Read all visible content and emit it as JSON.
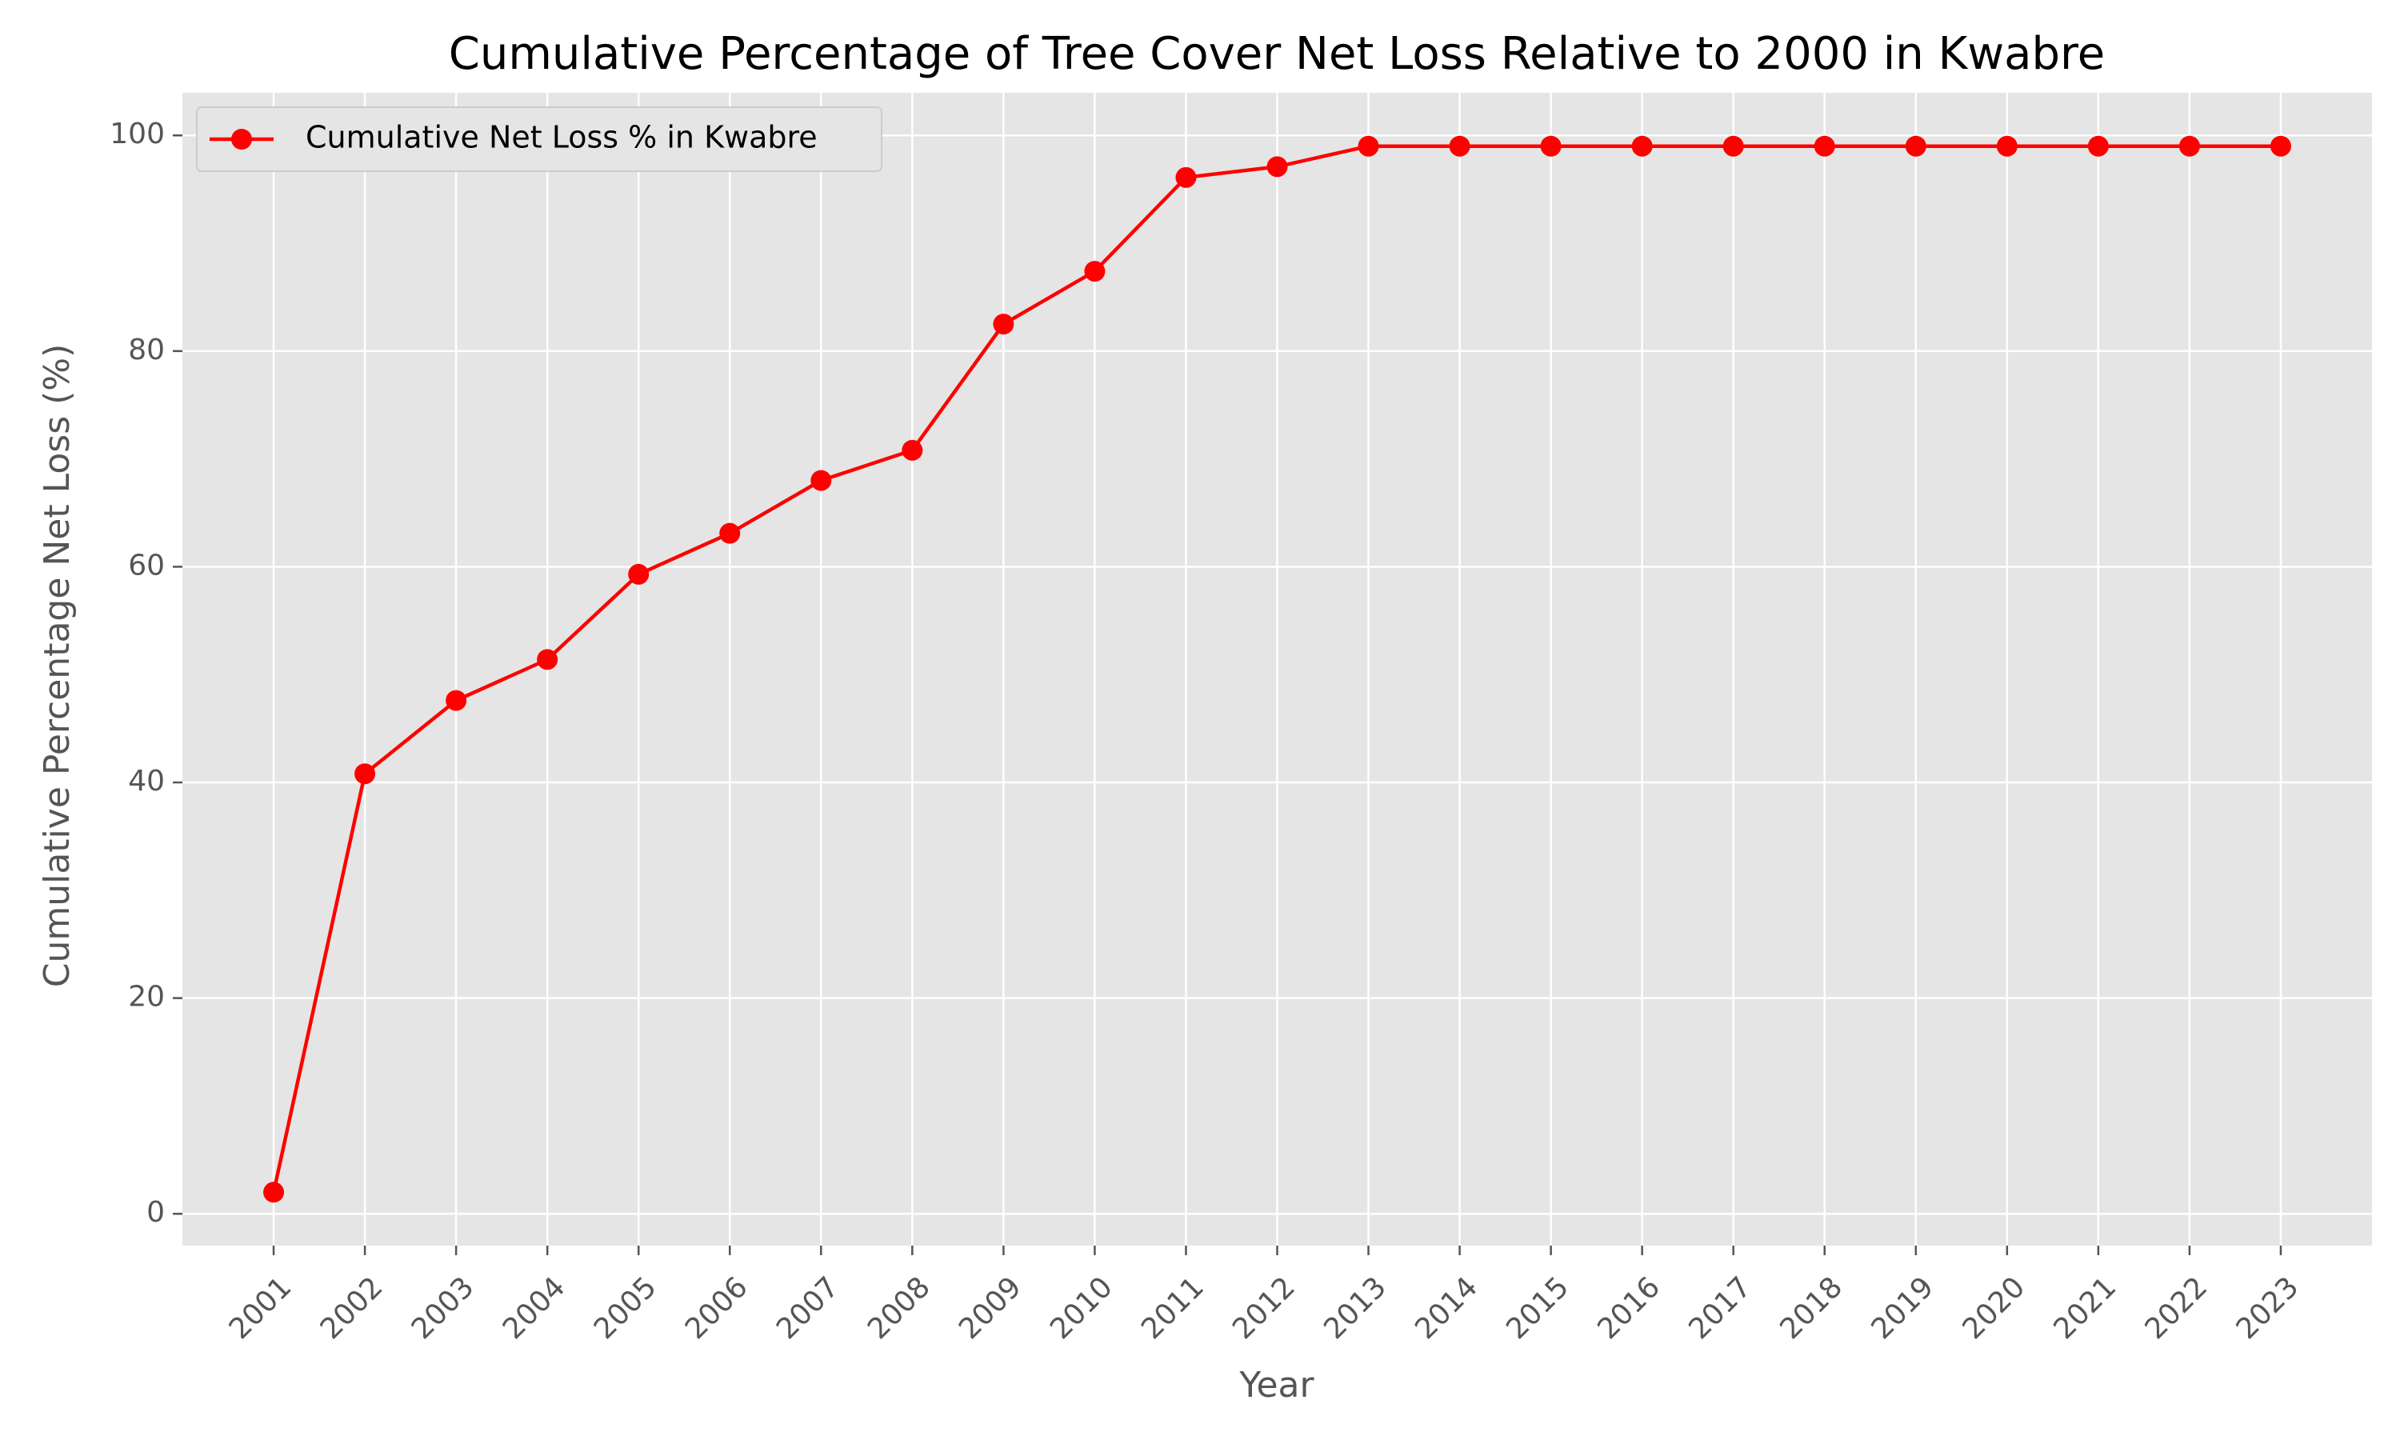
{
  "chart_data": {
    "type": "line",
    "title": "Cumulative Percentage of Tree Cover Net Loss Relative to 2000 in Kwabre",
    "xlabel": "Year",
    "ylabel": "Cumulative Percentage Net Loss (%)",
    "categories": [
      "2001",
      "2002",
      "2003",
      "2004",
      "2005",
      "2006",
      "2007",
      "2008",
      "2009",
      "2010",
      "2011",
      "2012",
      "2013",
      "2014",
      "2015",
      "2016",
      "2017",
      "2018",
      "2019",
      "2020",
      "2021",
      "2022",
      "2023"
    ],
    "series": [
      {
        "name": "Cumulative Net Loss % in Kwabre",
        "color": "#ff0000",
        "marker": "circle",
        "values": [
          2.0,
          40.8,
          47.6,
          51.4,
          59.3,
          63.1,
          68.0,
          70.8,
          82.5,
          87.4,
          96.1,
          97.1,
          99.0,
          99.0,
          99.0,
          99.0,
          99.0,
          99.0,
          99.0,
          99.0,
          99.0,
          99.0,
          99.0
        ]
      }
    ],
    "ylim": [
      -2.95,
      103.95
    ],
    "yticks": [
      0,
      20,
      40,
      60,
      80,
      100
    ],
    "grid": true,
    "legend_position": "top-left",
    "plot_background": "#e5e5e5",
    "grid_color": "#ffffff"
  }
}
